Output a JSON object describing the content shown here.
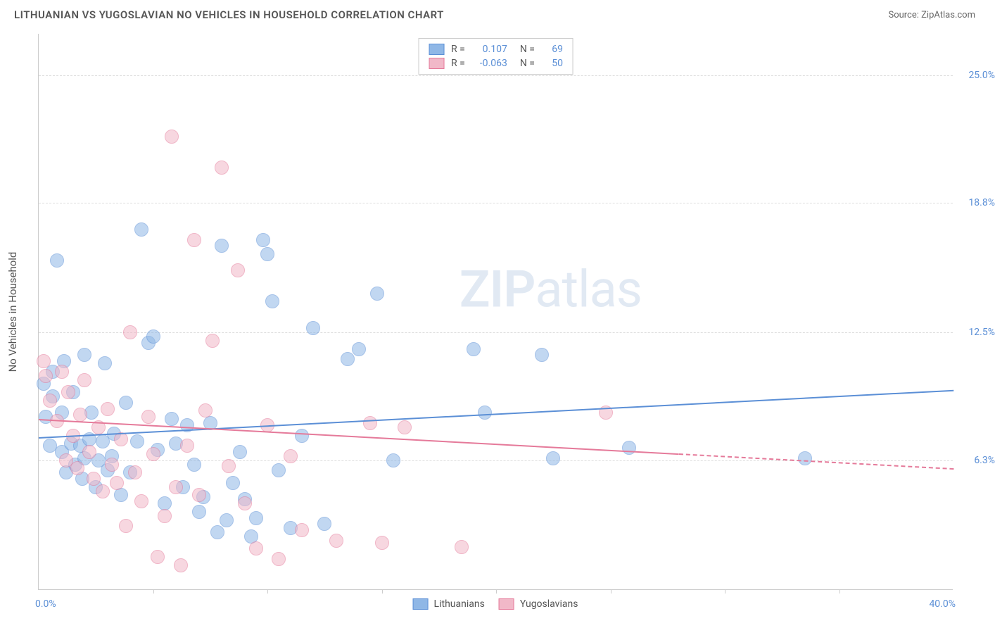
{
  "header": {
    "title": "LITHUANIAN VS YUGOSLAVIAN NO VEHICLES IN HOUSEHOLD CORRELATION CHART",
    "source_prefix": "Source: ",
    "source_name": "ZipAtlas.com"
  },
  "chart": {
    "type": "scatter",
    "ylabel": "No Vehicles in Household",
    "watermark_a": "ZIP",
    "watermark_b": "atlas",
    "background_color": "#ffffff",
    "grid_color": "#dddddd",
    "axis_color": "#cccccc",
    "tick_label_color": "#5b8fd6",
    "xlim": [
      0,
      40
    ],
    "ylim": [
      0,
      27
    ],
    "xticks": [
      {
        "pos": 0.0,
        "label": "0.0%"
      },
      {
        "pos": 40.0,
        "label": "40.0%"
      }
    ],
    "xtick_minor_positions": [
      5,
      10,
      15,
      20,
      25,
      30,
      35
    ],
    "yticks": [
      {
        "pos": 6.3,
        "label": "6.3%"
      },
      {
        "pos": 12.5,
        "label": "12.5%"
      },
      {
        "pos": 18.8,
        "label": "18.8%"
      },
      {
        "pos": 25.0,
        "label": "25.0%"
      }
    ],
    "point_radius": 10,
    "point_opacity": 0.55,
    "series": [
      {
        "name": "Lithuanians",
        "fill_color": "#8fb7e6",
        "stroke_color": "#5b8fd6",
        "r_label": "R =",
        "r_value": "0.107",
        "n_label": "N =",
        "n_value": "69",
        "trend": {
          "x1": 0,
          "y1": 7.4,
          "x2": 40,
          "y2": 9.7,
          "xmax_solid": 40
        },
        "points": [
          [
            0.2,
            10.0
          ],
          [
            0.3,
            8.4
          ],
          [
            0.5,
            7.0
          ],
          [
            0.6,
            9.4
          ],
          [
            0.6,
            10.6
          ],
          [
            0.8,
            16.0
          ],
          [
            1.0,
            6.7
          ],
          [
            1.0,
            8.6
          ],
          [
            1.1,
            11.1
          ],
          [
            1.2,
            5.7
          ],
          [
            1.4,
            7.1
          ],
          [
            1.5,
            9.6
          ],
          [
            1.6,
            6.1
          ],
          [
            1.8,
            7.0
          ],
          [
            1.9,
            5.4
          ],
          [
            2.0,
            11.4
          ],
          [
            2.0,
            6.4
          ],
          [
            2.2,
            7.3
          ],
          [
            2.3,
            8.6
          ],
          [
            2.5,
            5.0
          ],
          [
            2.6,
            6.3
          ],
          [
            2.8,
            7.2
          ],
          [
            2.9,
            11.0
          ],
          [
            3.0,
            5.8
          ],
          [
            3.2,
            6.5
          ],
          [
            3.3,
            7.6
          ],
          [
            3.6,
            4.6
          ],
          [
            3.8,
            9.1
          ],
          [
            4.0,
            5.7
          ],
          [
            4.3,
            7.2
          ],
          [
            4.5,
            17.5
          ],
          [
            4.8,
            12.0
          ],
          [
            5.0,
            12.3
          ],
          [
            5.2,
            6.8
          ],
          [
            5.5,
            4.2
          ],
          [
            5.8,
            8.3
          ],
          [
            6.0,
            7.1
          ],
          [
            6.3,
            5.0
          ],
          [
            6.5,
            8.0
          ],
          [
            6.8,
            6.1
          ],
          [
            7.0,
            3.8
          ],
          [
            7.2,
            4.5
          ],
          [
            7.5,
            8.1
          ],
          [
            7.8,
            2.8
          ],
          [
            8.0,
            16.7
          ],
          [
            8.2,
            3.4
          ],
          [
            8.5,
            5.2
          ],
          [
            8.8,
            6.7
          ],
          [
            9.0,
            4.4
          ],
          [
            9.3,
            2.6
          ],
          [
            9.5,
            3.5
          ],
          [
            9.8,
            17.0
          ],
          [
            10.0,
            16.3
          ],
          [
            10.2,
            14.0
          ],
          [
            10.5,
            5.8
          ],
          [
            11.0,
            3.0
          ],
          [
            11.5,
            7.5
          ],
          [
            12.0,
            12.7
          ],
          [
            12.5,
            3.2
          ],
          [
            13.5,
            11.2
          ],
          [
            14.0,
            11.7
          ],
          [
            14.8,
            14.4
          ],
          [
            15.5,
            6.3
          ],
          [
            19.0,
            11.7
          ],
          [
            19.5,
            8.6
          ],
          [
            22.0,
            11.4
          ],
          [
            22.5,
            6.4
          ],
          [
            25.8,
            6.9
          ],
          [
            33.5,
            6.4
          ]
        ]
      },
      {
        "name": "Yugoslavians",
        "fill_color": "#f1b8c8",
        "stroke_color": "#e57a9a",
        "r_label": "R =",
        "r_value": "-0.063",
        "n_label": "N =",
        "n_value": "50",
        "trend": {
          "x1": 0,
          "y1": 8.3,
          "x2": 40,
          "y2": 5.9,
          "xmax_solid": 28
        },
        "points": [
          [
            0.2,
            11.1
          ],
          [
            0.3,
            10.4
          ],
          [
            0.5,
            9.2
          ],
          [
            0.8,
            8.2
          ],
          [
            1.0,
            10.6
          ],
          [
            1.2,
            6.3
          ],
          [
            1.3,
            9.6
          ],
          [
            1.5,
            7.5
          ],
          [
            1.7,
            5.9
          ],
          [
            1.8,
            8.5
          ],
          [
            2.0,
            10.2
          ],
          [
            2.2,
            6.7
          ],
          [
            2.4,
            5.4
          ],
          [
            2.6,
            7.9
          ],
          [
            2.8,
            4.8
          ],
          [
            3.0,
            8.8
          ],
          [
            3.2,
            6.1
          ],
          [
            3.4,
            5.2
          ],
          [
            3.6,
            7.3
          ],
          [
            3.8,
            3.1
          ],
          [
            4.0,
            12.5
          ],
          [
            4.2,
            5.7
          ],
          [
            4.5,
            4.3
          ],
          [
            4.8,
            8.4
          ],
          [
            5.0,
            6.6
          ],
          [
            5.2,
            1.6
          ],
          [
            5.5,
            3.6
          ],
          [
            5.8,
            22.0
          ],
          [
            6.0,
            5.0
          ],
          [
            6.2,
            1.2
          ],
          [
            6.5,
            7.0
          ],
          [
            6.8,
            17.0
          ],
          [
            7.0,
            4.6
          ],
          [
            7.3,
            8.7
          ],
          [
            7.6,
            12.1
          ],
          [
            8.0,
            20.5
          ],
          [
            8.3,
            6.0
          ],
          [
            8.7,
            15.5
          ],
          [
            9.0,
            4.2
          ],
          [
            9.5,
            2.0
          ],
          [
            10.0,
            8.0
          ],
          [
            10.5,
            1.5
          ],
          [
            11.0,
            6.5
          ],
          [
            11.5,
            2.9
          ],
          [
            13.0,
            2.4
          ],
          [
            14.5,
            8.1
          ],
          [
            15.0,
            2.3
          ],
          [
            16.0,
            7.9
          ],
          [
            18.5,
            2.1
          ],
          [
            24.8,
            8.6
          ]
        ]
      }
    ]
  }
}
